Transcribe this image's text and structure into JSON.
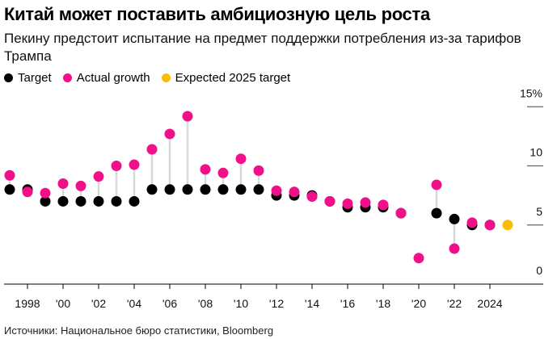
{
  "title": "Китай может поставить амбициозную цель роста",
  "subtitle": "Пекину предстоит испытание на предмет поддержки потребления из-за тарифов Трампа",
  "source": "Источники: Национальное бюро статистики, Bloomberg",
  "colors": {
    "target": "#000000",
    "actual": "#f0118a",
    "expected": "#fbbc05",
    "stem": "#d9d9d9"
  },
  "chart_data": {
    "type": "scatter",
    "title": "Китай может поставить амбициозную цель роста",
    "xlabel": "",
    "ylabel": "",
    "ylim": [
      0,
      15
    ],
    "xlim": [
      1997,
      2025
    ],
    "y_ticks": [
      0,
      5,
      10,
      15
    ],
    "y_tick_labels": [
      "0",
      "5",
      "10",
      "15%"
    ],
    "x_ticks": [
      1998,
      2000,
      2002,
      2004,
      2006,
      2008,
      2010,
      2012,
      2014,
      2016,
      2018,
      2020,
      2022,
      2024
    ],
    "x_tick_labels": [
      "1998",
      "'00",
      "'02",
      "'04",
      "'06",
      "'08",
      "'10",
      "'12",
      "'14",
      "'16",
      "'18",
      "'20",
      "'22",
      "2024"
    ],
    "legend": [
      "Target",
      "Actual growth",
      "Expected 2025 target"
    ],
    "legend_position": "top-left",
    "x": [
      1997,
      1998,
      1999,
      2000,
      2001,
      2002,
      2003,
      2004,
      2005,
      2006,
      2007,
      2008,
      2009,
      2010,
      2011,
      2012,
      2013,
      2014,
      2015,
      2016,
      2017,
      2018,
      2019,
      2020,
      2021,
      2022,
      2023,
      2024
    ],
    "series": [
      {
        "name": "Target",
        "values": [
          8,
          8,
          7,
          7,
          7,
          7,
          7,
          7,
          8,
          8,
          8,
          8,
          8,
          8,
          8,
          7.5,
          7.5,
          7.5,
          7,
          6.5,
          6.5,
          6.5,
          6,
          null,
          6,
          5.5,
          5,
          5
        ]
      },
      {
        "name": "Actual growth",
        "values": [
          9.2,
          7.8,
          7.7,
          8.5,
          8.3,
          9.1,
          10,
          10.1,
          11.4,
          12.7,
          14.2,
          9.7,
          9.4,
          10.6,
          9.6,
          7.9,
          7.8,
          7.4,
          7,
          6.8,
          6.9,
          6.7,
          6,
          2.2,
          8.4,
          3,
          5.2,
          5
        ]
      },
      {
        "name": "Expected 2025 target",
        "x": [
          2025
        ],
        "values": [
          5
        ]
      }
    ]
  }
}
